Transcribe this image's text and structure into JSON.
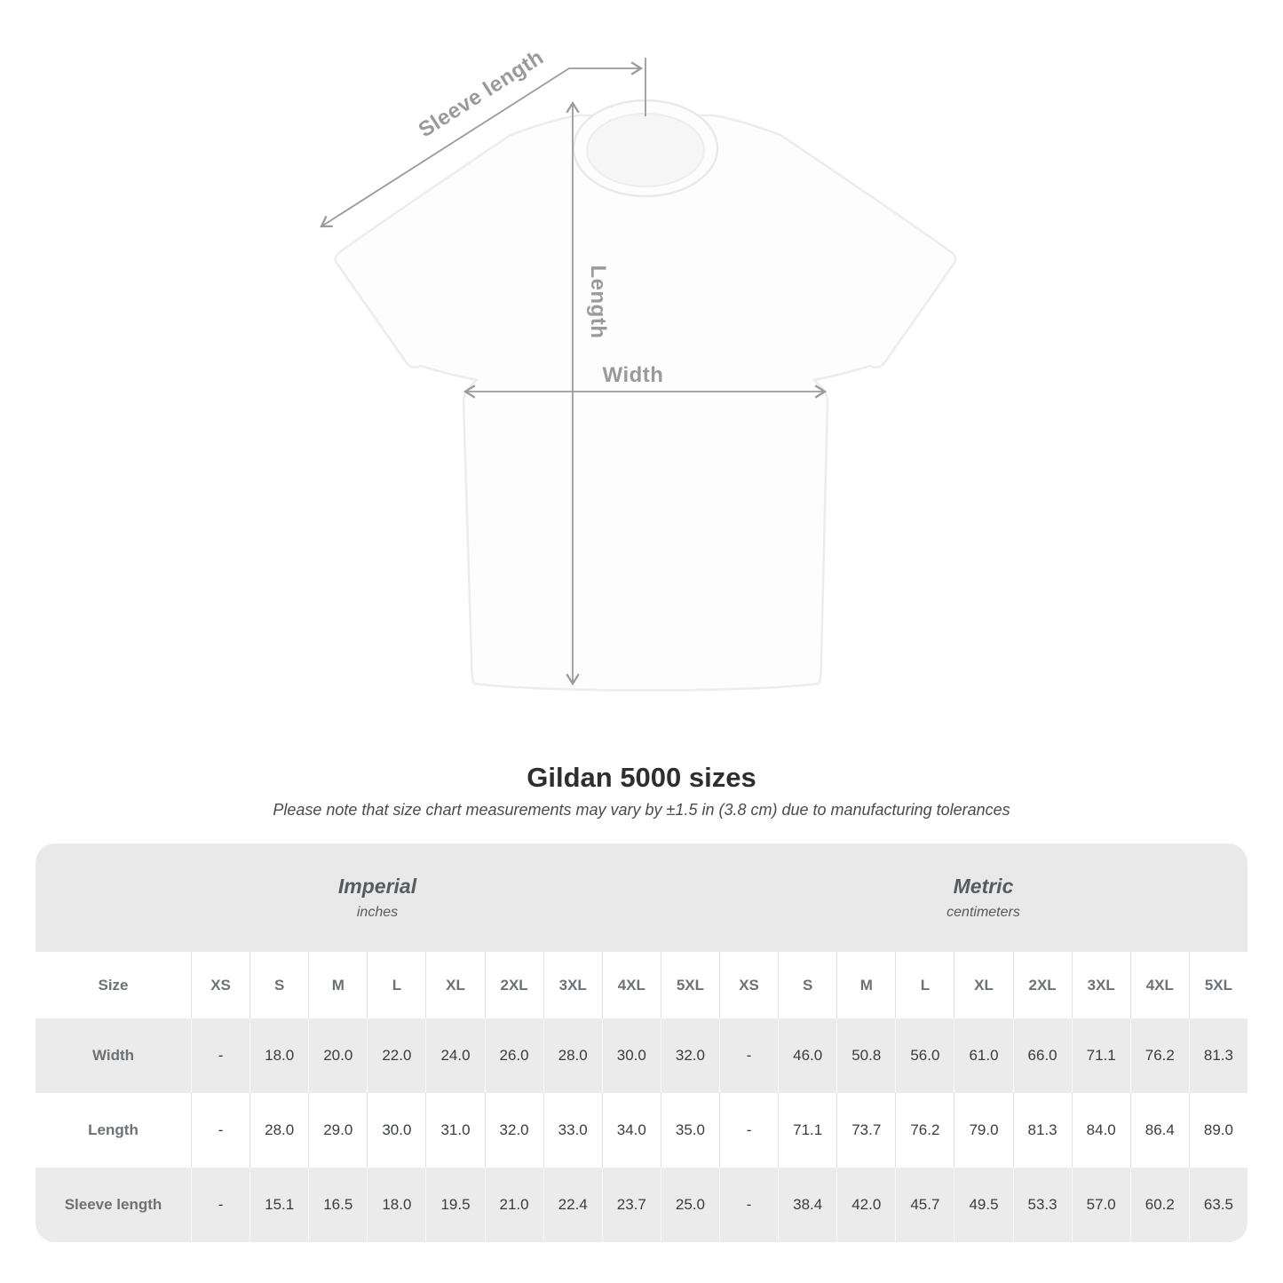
{
  "title": "Gildan 5000 sizes",
  "subtitle": "Please note that size chart measurements may vary by ±1.5 in (3.8 cm) due to manufacturing tolerances",
  "diagram": {
    "sleeve_length_label": "Sleeve length",
    "length_label": "Length",
    "width_label": "Width"
  },
  "table": {
    "size_label": "Size",
    "sections": [
      {
        "name": "Imperial",
        "unit": "inches"
      },
      {
        "name": "Metric",
        "unit": "centimeters"
      }
    ],
    "sizes": [
      "XS",
      "S",
      "M",
      "L",
      "XL",
      "2XL",
      "3XL",
      "4XL",
      "5XL"
    ],
    "rows": [
      {
        "label": "Width",
        "imperial": [
          "-",
          "18.0",
          "20.0",
          "22.0",
          "24.0",
          "26.0",
          "28.0",
          "30.0",
          "32.0"
        ],
        "metric": [
          "-",
          "46.0",
          "50.8",
          "56.0",
          "61.0",
          "66.0",
          "71.1",
          "76.2",
          "81.3"
        ]
      },
      {
        "label": "Length",
        "imperial": [
          "-",
          "28.0",
          "29.0",
          "30.0",
          "31.0",
          "32.0",
          "33.0",
          "34.0",
          "35.0"
        ],
        "metric": [
          "-",
          "71.1",
          "73.7",
          "76.2",
          "79.0",
          "81.3",
          "84.0",
          "86.4",
          "89.0"
        ]
      },
      {
        "label": "Sleeve length",
        "imperial": [
          "-",
          "15.1",
          "16.5",
          "18.0",
          "19.5",
          "21.0",
          "22.4",
          "23.7",
          "25.0"
        ],
        "metric": [
          "-",
          "38.4",
          "42.0",
          "45.7",
          "49.5",
          "53.3",
          "57.0",
          "60.2",
          "63.5"
        ]
      }
    ]
  },
  "chart_data": {
    "type": "table",
    "title": "Gildan 5000 sizes",
    "note": "Please note that size chart measurements may vary by ±1.5 in (3.8 cm) due to manufacturing tolerances",
    "columns": [
      "Size",
      "XS",
      "S",
      "M",
      "L",
      "XL",
      "2XL",
      "3XL",
      "4XL",
      "5XL"
    ],
    "units": {
      "Imperial": "inches",
      "Metric": "centimeters"
    },
    "imperial_rows": [
      [
        "Width",
        null,
        18.0,
        20.0,
        22.0,
        24.0,
        26.0,
        28.0,
        30.0,
        32.0
      ],
      [
        "Length",
        null,
        28.0,
        29.0,
        30.0,
        31.0,
        32.0,
        33.0,
        34.0,
        35.0
      ],
      [
        "Sleeve length",
        null,
        15.1,
        16.5,
        18.0,
        19.5,
        21.0,
        22.4,
        23.7,
        25.0
      ]
    ],
    "metric_rows": [
      [
        "Width",
        null,
        46.0,
        50.8,
        56.0,
        61.0,
        66.0,
        71.1,
        76.2,
        81.3
      ],
      [
        "Length",
        null,
        71.1,
        73.7,
        76.2,
        79.0,
        81.3,
        84.0,
        86.4,
        89.0
      ],
      [
        "Sleeve length",
        null,
        38.4,
        42.0,
        45.7,
        49.5,
        53.3,
        57.0,
        60.2,
        63.5
      ]
    ]
  },
  "colors": {
    "band_bg": "#e9e9e9",
    "row_shade": "#ebebeb",
    "annotation": "#9b9b9b",
    "title": "#2e2e2e",
    "header_text": "#6d7276",
    "value_text": "#3a3d40"
  }
}
